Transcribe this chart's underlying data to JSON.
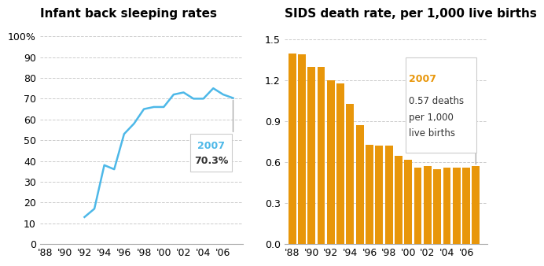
{
  "left_title": "Infant back sleeping rates",
  "right_title": "SIDS death rate, per 1,000 live births",
  "line_years": [
    1992,
    1993,
    1994,
    1995,
    1996,
    1997,
    1998,
    1999,
    2000,
    2001,
    2002,
    2003,
    2004,
    2005,
    2006,
    2007
  ],
  "line_values": [
    13,
    17,
    38,
    36,
    53,
    58,
    65,
    66,
    66,
    72,
    73,
    70,
    70,
    75,
    72,
    70.3
  ],
  "line_color": "#4db8e8",
  "left_yticks": [
    0,
    10,
    20,
    30,
    40,
    50,
    60,
    70,
    80,
    90,
    100
  ],
  "left_ytick_labels": [
    "0",
    "10",
    "20",
    "30",
    "40",
    "50",
    "60",
    "70",
    "80",
    "90",
    "100%"
  ],
  "bar_years": [
    1988,
    1989,
    1990,
    1991,
    1992,
    1993,
    1994,
    1995,
    1996,
    1997,
    1998,
    1999,
    2000,
    2001,
    2002,
    2003,
    2004,
    2005,
    2006,
    2007
  ],
  "bar_values": [
    1.4,
    1.39,
    1.3,
    1.3,
    1.2,
    1.18,
    1.03,
    0.87,
    0.73,
    0.72,
    0.72,
    0.65,
    0.62,
    0.56,
    0.57,
    0.55,
    0.56,
    0.56,
    0.56,
    0.57
  ],
  "bar_color": "#e8960a",
  "right_yticks": [
    0.0,
    0.3,
    0.6,
    0.9,
    1.2,
    1.5
  ],
  "right_ytick_labels": [
    "0.0",
    "0.3",
    "0.6",
    "0.9",
    "1.2",
    "1.5"
  ],
  "xtick_years_left": [
    1988,
    1990,
    1992,
    1994,
    1996,
    1998,
    2000,
    2002,
    2004,
    2006
  ],
  "xtick_labels_left": [
    "'88",
    "'90",
    "'92",
    "'94",
    "'96",
    "'98",
    "'00",
    "'02",
    "'04",
    "'06"
  ],
  "xtick_years_right": [
    1988,
    1990,
    1992,
    1994,
    1996,
    1998,
    2000,
    2002,
    2004,
    2006
  ],
  "xtick_labels_right": [
    "'88",
    "'90",
    "'92",
    "'94",
    "'96",
    "'98",
    "'00",
    "'02",
    "'04",
    "'06"
  ],
  "left_annotation_year": "2007",
  "left_annotation_value": "70.3%",
  "right_annotation_year": "2007",
  "right_annotation_line1": "0.57 deaths",
  "right_annotation_line2": "per 1,000",
  "right_annotation_line3": "live births",
  "annotation_year_color": "#4db8e8",
  "bar_annotation_year_color": "#e8960a",
  "grid_color": "#cccccc",
  "background_color": "#ffffff",
  "title_fontsize": 11,
  "axis_fontsize": 9
}
